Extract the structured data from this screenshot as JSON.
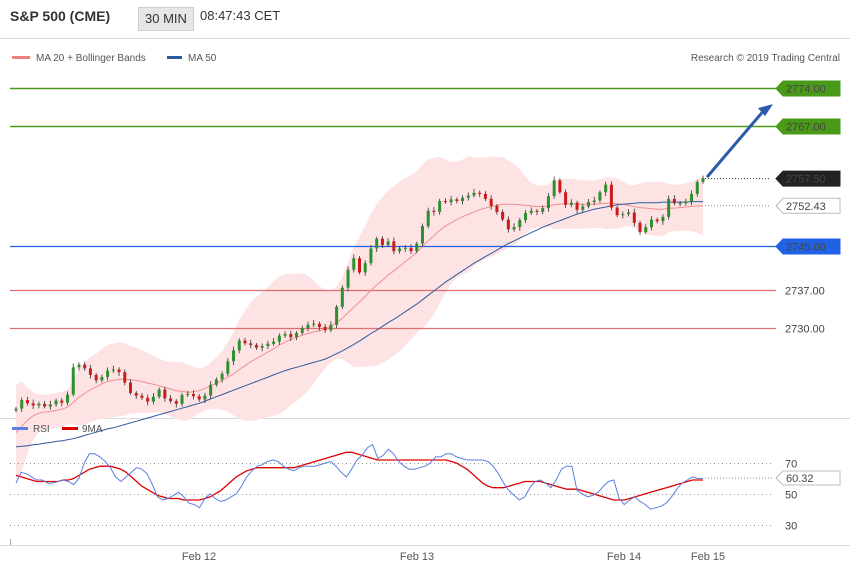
{
  "header": {
    "symbol": "S&P 500 (CME)",
    "timeframe": "30 MIN",
    "time": "08:47:43 CET"
  },
  "legend": [
    {
      "label": "MA 20 + Bollinger Bands",
      "color": "#f08080"
    },
    {
      "label": "MA 50",
      "color": "#2f5a9e"
    }
  ],
  "copyright": "Research © 2019 Trading Central",
  "colors": {
    "green_level": "#4a9a1a",
    "blue_level": "#1f62e6",
    "red_level": "#e07070",
    "up_candle": "#2d8f2d",
    "down_candle": "#cc1b1b",
    "band_fill": "#fde3e3",
    "ma50": "#2f5a9e",
    "rsi": "#5b7fe0",
    "rsi_ma": "#e00000"
  },
  "chart_data": [
    {
      "type": "candlestick",
      "ylim": [
        2713.5,
        2781
      ],
      "current_price": "2757.50",
      "ma20_end": "2752.43",
      "levels": [
        {
          "value": 2774.0,
          "label": "2774.00",
          "kind": "resistance"
        },
        {
          "value": 2767.0,
          "label": "2767.00",
          "kind": "resistance"
        },
        {
          "value": 2745.0,
          "label": "2745.00",
          "kind": "pivot"
        },
        {
          "value": 2737.0,
          "label": "2737.00",
          "kind": "support"
        },
        {
          "value": 2730.0,
          "label": "2730.00",
          "kind": "support"
        }
      ],
      "projection": {
        "from": 2757.5,
        "to": 2772.0
      },
      "x_labels": [
        "Feb 12",
        "Feb 13",
        "Feb 14",
        "Feb 15"
      ],
      "close": [
        2715.2,
        2716.8,
        2716.2,
        2715.8,
        2716.1,
        2715.6,
        2716.0,
        2716.7,
        2716.3,
        2717.8,
        2722.8,
        2723.3,
        2722.6,
        2721.4,
        2720.4,
        2721.0,
        2722.2,
        2722.4,
        2721.9,
        2720.0,
        2718.1,
        2717.6,
        2717.2,
        2716.5,
        2717.4,
        2718.7,
        2717.1,
        2716.6,
        2716.1,
        2717.7,
        2717.9,
        2717.5,
        2716.9,
        2717.6,
        2719.6,
        2720.6,
        2721.6,
        2723.9,
        2725.9,
        2727.7,
        2727.2,
        2726.9,
        2726.4,
        2726.7,
        2727.1,
        2727.5,
        2728.6,
        2728.9,
        2728.3,
        2729.1,
        2730.0,
        2730.6,
        2730.8,
        2730.2,
        2729.6,
        2730.6,
        2733.9,
        2737.4,
        2740.7,
        2742.8,
        2740.2,
        2741.9,
        2744.6,
        2746.4,
        2745.2,
        2745.9,
        2744.1,
        2744.6,
        2744.7,
        2744.1,
        2745.5,
        2748.7,
        2751.5,
        2751.3,
        2753.3,
        2753.1,
        2753.6,
        2753.3,
        2753.9,
        2754.3,
        2754.8,
        2754.6,
        2753.7,
        2752.4,
        2751.3,
        2749.9,
        2748.1,
        2748.5,
        2749.8,
        2751.1,
        2751.5,
        2751.3,
        2752.0,
        2754.2,
        2757.1,
        2754.9,
        2752.6,
        2753.0,
        2751.7,
        2752.3,
        2753.1,
        2753.4,
        2754.9,
        2756.3,
        2752.1,
        2750.7,
        2750.9,
        2751.2,
        2749.3,
        2747.6,
        2748.5,
        2749.9,
        2749.6,
        2750.4,
        2753.7,
        2752.9,
        2752.9,
        2753.2,
        2754.6,
        2756.8,
        2757.5
      ],
      "ma20": [
        2710.8,
        2712.0,
        2713.1,
        2713.9,
        2714.4,
        2714.6,
        2714.7,
        2714.9,
        2715.1,
        2715.5,
        2716.4,
        2717.3,
        2718.0,
        2718.7,
        2719.2,
        2719.8,
        2720.2,
        2720.4,
        2720.6,
        2720.6,
        2720.5,
        2720.4,
        2720.2,
        2719.9,
        2719.7,
        2719.4,
        2719.1,
        2718.8,
        2718.5,
        2718.4,
        2718.2,
        2718.3,
        2718.5,
        2718.9,
        2719.4,
        2719.9,
        2720.4,
        2721.0,
        2721.6,
        2722.4,
        2723.1,
        2723.8,
        2724.4,
        2725.0,
        2725.6,
        2726.2,
        2726.9,
        2727.4,
        2727.9,
        2728.3,
        2728.7,
        2729.0,
        2729.3,
        2729.5,
        2729.8,
        2730.3,
        2731.0,
        2731.8,
        2732.8,
        2733.8,
        2734.8,
        2735.8,
        2736.9,
        2737.9,
        2738.8,
        2739.7,
        2740.5,
        2741.3,
        2742.2,
        2743.0,
        2743.9,
        2745.0,
        2746.0,
        2746.9,
        2747.9,
        2748.7,
        2749.3,
        2749.9,
        2750.4,
        2750.9,
        2751.3,
        2751.7,
        2752.0,
        2752.3,
        2752.5,
        2752.7,
        2752.7,
        2752.7,
        2752.6,
        2752.5,
        2752.4,
        2752.3,
        2752.3,
        2752.4,
        2752.6,
        2752.7,
        2752.8,
        2752.8,
        2752.7,
        2752.7,
        2752.7,
        2752.7,
        2752.8,
        2752.9,
        2752.9,
        2752.8,
        2752.7,
        2752.5,
        2752.3,
        2752.1,
        2752.0,
        2751.9,
        2751.8,
        2751.8,
        2752.0,
        2752.0,
        2752.1,
        2752.2,
        2752.3,
        2752.4,
        2752.43
      ],
      "ma50": [
        2708.2,
        2708.3,
        2708.4,
        2708.6,
        2708.7,
        2708.9,
        2709.0,
        2709.2,
        2709.3,
        2709.5,
        2709.7,
        2710.0,
        2710.3,
        2710.6,
        2710.9,
        2711.2,
        2711.5,
        2711.7,
        2712.0,
        2712.3,
        2712.6,
        2712.9,
        2713.2,
        2713.5,
        2713.8,
        2714.1,
        2714.4,
        2714.7,
        2715.0,
        2715.3,
        2715.6,
        2715.9,
        2716.2,
        2716.6,
        2717.0,
        2717.4,
        2717.8,
        2718.2,
        2718.6,
        2719.0,
        2719.4,
        2719.8,
        2720.2,
        2720.6,
        2721.0,
        2721.4,
        2721.8,
        2722.2,
        2722.5,
        2722.8,
        2723.1,
        2723.4,
        2723.7,
        2724.0,
        2724.3,
        2724.8,
        2725.3,
        2725.8,
        2726.4,
        2727.0,
        2727.6,
        2728.3,
        2729.0,
        2729.6,
        2730.3,
        2731.0,
        2731.6,
        2732.3,
        2733.0,
        2733.7,
        2734.4,
        2735.2,
        2736.0,
        2736.8,
        2737.6,
        2738.4,
        2739.1,
        2739.8,
        2740.5,
        2741.2,
        2741.9,
        2742.5,
        2743.1,
        2743.7,
        2744.3,
        2744.9,
        2745.5,
        2746.0,
        2746.5,
        2747.0,
        2747.5,
        2748.0,
        2748.5,
        2748.9,
        2749.3,
        2749.7,
        2750.1,
        2750.5,
        2750.9,
        2751.2,
        2751.5,
        2751.8,
        2752.0,
        2752.2,
        2752.4,
        2752.6,
        2752.7,
        2752.8,
        2752.9,
        2753.0,
        2753.0,
        2753.0,
        2753.0,
        2753.1,
        2753.1,
        2753.1,
        2753.1,
        2753.1,
        2753.2,
        2753.2,
        2753.2
      ]
    },
    {
      "type": "line",
      "series": [
        {
          "name": "RSI"
        },
        {
          "name": "9MA"
        }
      ],
      "ylim": [
        20,
        85
      ],
      "y_ticks": [
        30,
        50,
        70
      ],
      "rsi_last": "60.32",
      "rsi": [
        57,
        64,
        63,
        61,
        59,
        59,
        57,
        57,
        58,
        59,
        58,
        56,
        60,
        70,
        76,
        76,
        74,
        71,
        67,
        61,
        58,
        61,
        64,
        67,
        66,
        63,
        56,
        48,
        46,
        47,
        49,
        51,
        48,
        44,
        43,
        41,
        47,
        50,
        47,
        45,
        46,
        48,
        50,
        55,
        61,
        65,
        68,
        69,
        71,
        72,
        71,
        68,
        66,
        65,
        67,
        68,
        68,
        68,
        69,
        70,
        71,
        68,
        64,
        61,
        66,
        72,
        75,
        80,
        82,
        73,
        75,
        79,
        76,
        71,
        68,
        66,
        66,
        67,
        68,
        70,
        74,
        74,
        76,
        76,
        74,
        73,
        72,
        72,
        72,
        72,
        71,
        68,
        63,
        57,
        52,
        49,
        46,
        48,
        54,
        58,
        59,
        57,
        54,
        59,
        66,
        68,
        68,
        52,
        50,
        48,
        49,
        51,
        55,
        58,
        59,
        47,
        43,
        46,
        48,
        45,
        43,
        40,
        41,
        42,
        44,
        48,
        53,
        57,
        59,
        61,
        60,
        60
      ],
      "rsi_ma": [
        62,
        61,
        60,
        59,
        58,
        58,
        58,
        58,
        58,
        59,
        59,
        60,
        62,
        64,
        66,
        67,
        68,
        68,
        68,
        67,
        66,
        64,
        61,
        58,
        55,
        53,
        51,
        49,
        48,
        47,
        47,
        47,
        46,
        46,
        46,
        46,
        47,
        48,
        50,
        52,
        55,
        58,
        61,
        63,
        65,
        66,
        67,
        67,
        67,
        67,
        67,
        67,
        67,
        67,
        68,
        69,
        70,
        71,
        72,
        73,
        74,
        75,
        76,
        77,
        77,
        76,
        75,
        74,
        73,
        72,
        72,
        72,
        72,
        72,
        72,
        72,
        72,
        72,
        72,
        72,
        72,
        72,
        72,
        71,
        70,
        68,
        66,
        63,
        60,
        57,
        55,
        54,
        54,
        54,
        55,
        56,
        57,
        58,
        58,
        58,
        58,
        57,
        56,
        55,
        54,
        53,
        53,
        53,
        52,
        51,
        50,
        49,
        48,
        47,
        46,
        46,
        46,
        47,
        48,
        49,
        50,
        51,
        52,
        53,
        54,
        55,
        56,
        57,
        58,
        59,
        59,
        59
      ]
    }
  ]
}
